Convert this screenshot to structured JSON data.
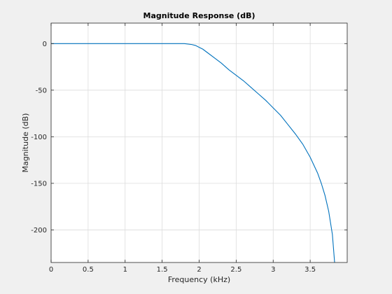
{
  "colors": {
    "figure_background": "#f0f0f0",
    "axes_background": "#ffffff",
    "axes_edge": "#262626",
    "grid": "#dcdcdc",
    "line": "#0072bd"
  },
  "chart_data": {
    "type": "line",
    "title": "Magnitude Response (dB)",
    "xlabel": "Frequency (kHz)",
    "ylabel": "Magnitude (dB)",
    "xlim": [
      0,
      4
    ],
    "ylim": [
      -235,
      22
    ],
    "grid": true,
    "xticks": [
      0,
      0.5,
      1,
      1.5,
      2,
      2.5,
      3,
      3.5
    ],
    "xtick_labels": [
      "0",
      "0.5",
      "1",
      "1.5",
      "2",
      "2.5",
      "3",
      "3.5"
    ],
    "yticks": [
      0,
      -50,
      -100,
      -150,
      -200
    ],
    "ytick_labels": [
      "0",
      "-50",
      "-100",
      "-150",
      "-200"
    ],
    "series": [
      {
        "color": "#0072bd",
        "x": [
          0,
          0.5,
          1.0,
          1.5,
          1.8,
          1.9,
          1.95,
          2.0,
          2.05,
          2.1,
          2.2,
          2.3,
          2.4,
          2.5,
          2.6,
          2.7,
          2.8,
          2.9,
          3.0,
          3.1,
          3.2,
          3.3,
          3.4,
          3.5,
          3.6,
          3.65,
          3.7,
          3.75,
          3.8,
          3.83
        ],
        "y": [
          0,
          0,
          0,
          0,
          0,
          -1,
          -2,
          -4,
          -6,
          -9,
          -15,
          -21,
          -28,
          -34,
          -40,
          -47,
          -54,
          -61,
          -69,
          -77,
          -87,
          -97,
          -108,
          -122,
          -139,
          -150,
          -163,
          -180,
          -205,
          -235
        ]
      }
    ]
  }
}
